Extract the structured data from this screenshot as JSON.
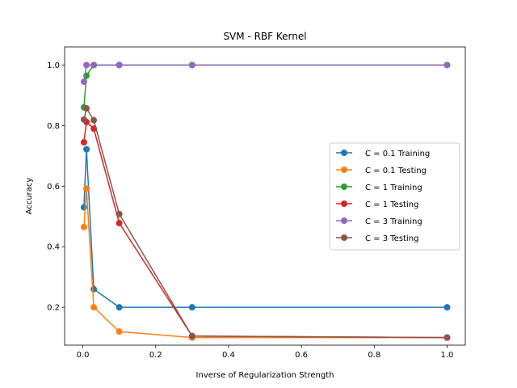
{
  "chart_data": {
    "type": "line",
    "title": "SVM - RBF Kernel",
    "xlabel": "Inverse of Regularization Strength",
    "ylabel": "Accuracy",
    "xlim": [
      -0.05,
      1.05
    ],
    "ylim": [
      0.075,
      1.06
    ],
    "xticks": [
      0.0,
      0.2,
      0.4,
      0.6,
      0.8,
      1.0
    ],
    "xtick_labels": [
      "0.0",
      "0.2",
      "0.4",
      "0.6",
      "0.8",
      "1.0"
    ],
    "yticks": [
      0.2,
      0.4,
      0.6,
      0.8,
      1.0
    ],
    "ytick_labels": [
      "0.2",
      "0.4",
      "0.6",
      "0.8",
      "1.0"
    ],
    "grid": false,
    "legend_position": "center-right",
    "x": [
      0.003,
      0.01,
      0.03,
      0.1,
      0.3,
      1.0
    ],
    "series": [
      {
        "name": "C = 0.1 Training",
        "color": "#1f77b4",
        "values": [
          0.53,
          0.722,
          0.26,
          0.2,
          0.2,
          0.2
        ]
      },
      {
        "name": "C = 0.1 Testing",
        "color": "#ff7f0e",
        "values": [
          0.465,
          0.592,
          0.2,
          0.12,
          0.1,
          0.1
        ]
      },
      {
        "name": "C = 1 Training",
        "color": "#2ca02c",
        "values": [
          0.86,
          0.965,
          1.0,
          1.0,
          1.0,
          1.0
        ]
      },
      {
        "name": "C = 1 Testing",
        "color": "#d62728",
        "values": [
          0.745,
          0.812,
          0.79,
          0.478,
          0.105,
          0.1
        ]
      },
      {
        "name": "C = 3 Training",
        "color": "#9467bd",
        "values": [
          0.945,
          1.0,
          1.0,
          1.0,
          1.0,
          1.0
        ]
      },
      {
        "name": "C = 3 Testing",
        "color": "#8c564b",
        "values": [
          0.82,
          0.857,
          0.818,
          0.508,
          0.105,
          0.1
        ]
      }
    ]
  }
}
